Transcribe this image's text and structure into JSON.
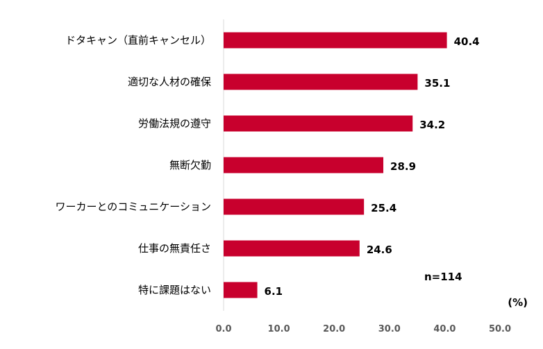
{
  "chart_data": {
    "type": "bar",
    "orientation": "horizontal",
    "categories": [
      "ドタキャン（直前キャンセル）",
      "適切な人材の確保",
      "労働法規の遵守",
      "無断欠勤",
      "ワーカーとのコミュニケーション",
      "仕事の無責任さ",
      "特に課題はない"
    ],
    "values": [
      40.4,
      35.1,
      34.2,
      28.9,
      25.4,
      24.6,
      6.1
    ],
    "value_labels": [
      "40.4",
      "35.1",
      "34.2",
      "28.9",
      "25.4",
      "24.6",
      "6.1"
    ],
    "xlim": [
      0,
      50
    ],
    "x_ticks": [
      "0.0",
      "10.0",
      "20.0",
      "30.0",
      "40.0",
      "50.0"
    ],
    "unit_label": "(%)",
    "sample_note": "n=114",
    "bar_color": "#c8002d",
    "grid": false,
    "legend": "none"
  }
}
